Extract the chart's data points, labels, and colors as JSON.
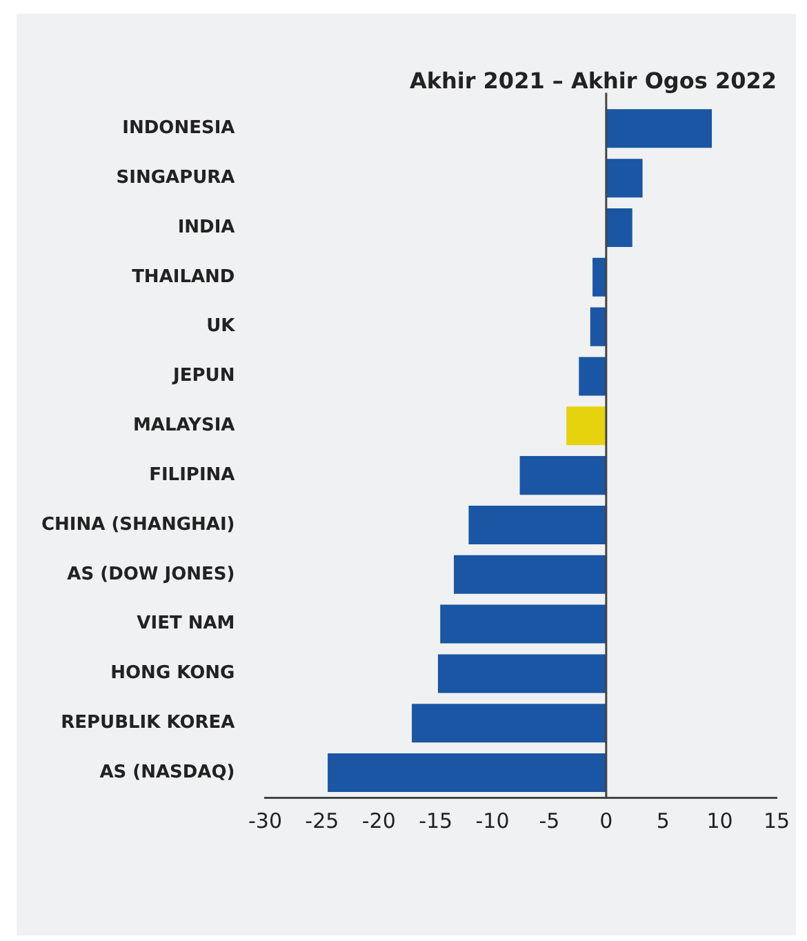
{
  "chart_data": {
    "type": "bar",
    "orientation": "horizontal",
    "title": "Akhir 2021 – Akhir Ogos 2022",
    "categories": [
      "INDONESIA",
      "SINGAPURA",
      "INDIA",
      "THAILAND",
      "UK",
      "JEPUN",
      "MALAYSIA",
      "FILIPINA",
      "CHINA (SHANGHAI)",
      "AS (DOW JONES)",
      "VIET NAM",
      "HONG KONG",
      "REPUBLIK KOREA",
      "AS (NASDAQ)"
    ],
    "values": [
      9.3,
      3.2,
      2.3,
      -1.2,
      -1.4,
      -2.4,
      -3.5,
      -7.6,
      -12.1,
      -13.4,
      -14.6,
      -14.8,
      -17.1,
      -24.5
    ],
    "colors": [
      "#1a56a3",
      "#1a56a3",
      "#1a56a3",
      "#1a56a3",
      "#1a56a3",
      "#1a56a3",
      "#e6d30e",
      "#1a56a3",
      "#1a56a3",
      "#1a56a3",
      "#1a56a3",
      "#1a56a3",
      "#1a56a3",
      "#1a56a3"
    ],
    "xlim": [
      -30,
      15
    ],
    "xticks": [
      -30,
      -25,
      -20,
      -15,
      -10,
      -5,
      0,
      5,
      10,
      15
    ],
    "legend": false
  }
}
